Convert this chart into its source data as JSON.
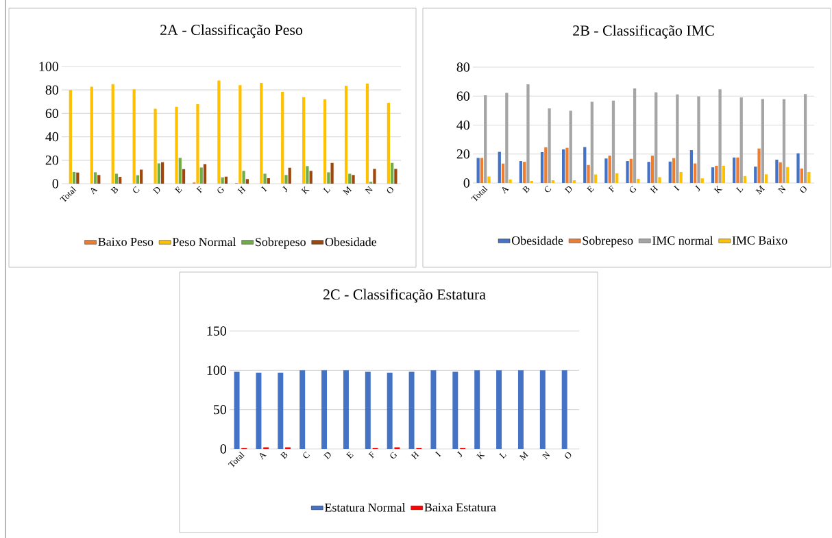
{
  "chart_data": [
    {
      "type": "bar",
      "title": "2A - Classificação Peso",
      "categories": [
        "Total",
        "A",
        "B",
        "C",
        "D",
        "E",
        "F",
        "G",
        "H",
        "I",
        "J",
        "K",
        "L",
        "M",
        "N",
        "O"
      ],
      "ylim": [
        0,
        100
      ],
      "yticks": [
        0,
        20,
        40,
        60,
        80,
        100
      ],
      "grid": "y",
      "legend": "bottom",
      "series": [
        {
          "name": "Baixo Peso",
          "color": "#ed7d31",
          "values": [
            0,
            0,
            0,
            0,
            0,
            0,
            1,
            0,
            0.5,
            0,
            0,
            0,
            0,
            0,
            0,
            0
          ]
        },
        {
          "name": "Peso Normal",
          "color": "#ffc000",
          "values": [
            80,
            82.7,
            85,
            80.6,
            64,
            65.6,
            67.8,
            88,
            84,
            86,
            78.4,
            73.8,
            72,
            83.5,
            85.4,
            69
          ]
        },
        {
          "name": "Sobrepeso",
          "color": "#70ad47",
          "values": [
            10,
            9.7,
            8.5,
            7.2,
            17.3,
            22,
            13.8,
            5.4,
            10.9,
            8.5,
            7.4,
            15,
            9.7,
            8.5,
            1.6,
            17.7
          ]
        },
        {
          "name": "Obesidade",
          "color": "#9e480e",
          "values": [
            9.5,
            7.4,
            5.8,
            12,
            18.3,
            12.4,
            16.7,
            6,
            3.9,
            4.7,
            13.6,
            10.9,
            17.7,
            7.4,
            12.6,
            12.6
          ]
        }
      ]
    },
    {
      "type": "bar",
      "title": "2B - Classificação IMC",
      "categories": [
        "Total",
        "A",
        "B",
        "C",
        "D",
        "E",
        "F",
        "G",
        "H",
        "I",
        "J",
        "K",
        "L",
        "M",
        "N",
        "O"
      ],
      "ylim": [
        0,
        80
      ],
      "yticks": [
        0,
        20,
        40,
        60,
        80
      ],
      "grid": "y",
      "legend": "bottom",
      "series": [
        {
          "name": "Obesidade",
          "color": "#4472c4",
          "values": [
            17.3,
            21.5,
            15.1,
            21.3,
            23.2,
            24.8,
            16.9,
            15.1,
            14.6,
            14.8,
            22.7,
            10.8,
            17.6,
            11.3,
            16.1,
            20.5
          ]
        },
        {
          "name": "Sobrepeso",
          "color": "#ed7d31",
          "values": [
            17.3,
            13.4,
            14.6,
            24.6,
            24.3,
            12.4,
            18.9,
            16.7,
            18.9,
            17.2,
            13.5,
            11.9,
            17.6,
            23.8,
            14.3,
            10
          ]
        },
        {
          "name": "IMC normal",
          "color": "#a5a5a5",
          "values": [
            60.6,
            62.2,
            68.2,
            51.5,
            49.9,
            56.1,
            56.9,
            65.3,
            62.6,
            61.2,
            59.8,
            64.7,
            59.1,
            58,
            57.9,
            61.4
          ]
        },
        {
          "name": "IMC Baixo",
          "color": "#ffc000",
          "values": [
            4.5,
            2.4,
            1.4,
            1.9,
            1.9,
            5.9,
            6.7,
            2.9,
            4,
            7.6,
            3.2,
            11.9,
            4.8,
            6,
            11,
            7.6
          ]
        }
      ]
    },
    {
      "type": "bar",
      "title": "2C - Classificação Estatura",
      "categories": [
        "Total",
        "A",
        "B",
        "C",
        "D",
        "E",
        "F",
        "G",
        "H",
        "I",
        "J",
        "K",
        "L",
        "M",
        "N",
        "O"
      ],
      "ylim": [
        0,
        150
      ],
      "yticks": [
        0,
        50,
        100,
        150
      ],
      "grid": "y",
      "legend": "bottom",
      "series": [
        {
          "name": "Estatura Normal",
          "color": "#4472c4",
          "values": [
            98,
            97,
            97,
            100,
            100,
            100,
            98,
            97,
            98,
            100,
            98,
            100,
            100,
            100,
            100,
            100
          ]
        },
        {
          "name": "Baixa Estatura",
          "color": "#ff0000",
          "values": [
            1,
            2,
            2,
            0,
            0,
            0,
            1,
            2,
            1,
            0,
            1,
            0,
            0,
            0,
            0,
            0
          ]
        }
      ]
    }
  ]
}
